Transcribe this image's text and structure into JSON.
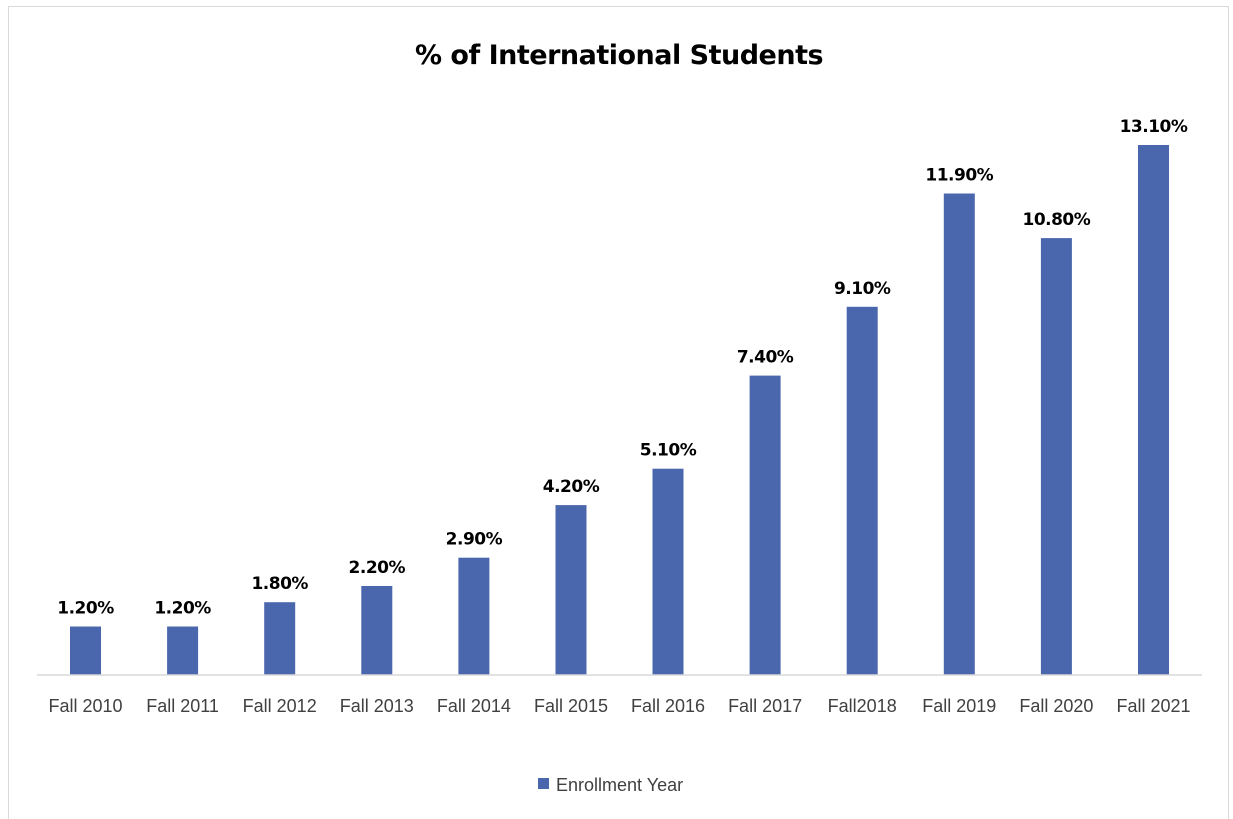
{
  "chart_data": {
    "type": "bar",
    "title": "% of International Students",
    "categories": [
      "Fall 2010",
      "Fall 2011",
      "Fall 2012",
      "Fall 2013",
      "Fall 2014",
      "Fall 2015",
      "Fall 2016",
      "Fall 2017",
      "Fall2018",
      "Fall 2019",
      "Fall 2020",
      "Fall 2021"
    ],
    "series": [
      {
        "name": "Enrollment Year",
        "values": [
          1.2,
          1.2,
          1.8,
          2.2,
          2.9,
          4.2,
          5.1,
          7.4,
          9.1,
          11.9,
          10.8,
          13.1
        ],
        "labels": [
          "1.20%",
          "1.20%",
          "1.80%",
          "2.20%",
          "2.90%",
          "4.20%",
          "5.10%",
          "7.40%",
          "9.10%",
          "11.90%",
          "10.80%",
          "13.10%"
        ],
        "color": "#4a67ad"
      }
    ],
    "xlabel": "",
    "ylabel": "",
    "ylim": [
      0,
      13.1
    ],
    "grid": false,
    "y_axis_visible": false,
    "legend_position": "bottom"
  },
  "colors": {
    "bar": "#4a67ad",
    "axis": "#d9d9d9",
    "text": "#404040"
  }
}
